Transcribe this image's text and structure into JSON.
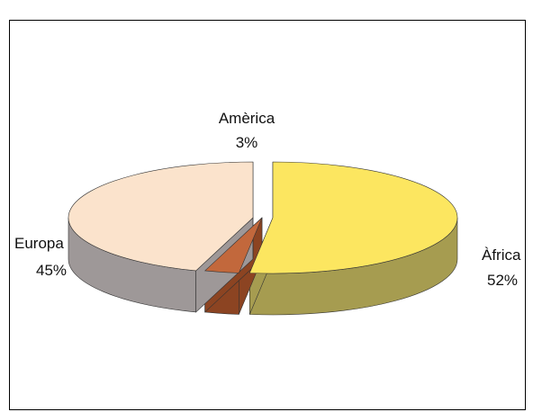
{
  "caption": "",
  "chart_data": {
    "type": "pie",
    "style": "3d-exploded",
    "title": "",
    "slices": [
      {
        "label": "Àfrica",
        "value_label": "52%",
        "value": 52,
        "top_color": "#fce660",
        "side_color": "#a69c50"
      },
      {
        "label": "Europa",
        "value_label": "45%",
        "value": 45,
        "top_color": "#fbe3cc",
        "side_color": "#9e9898"
      },
      {
        "label": "Amèrica",
        "value_label": "3%",
        "value": 3,
        "top_color": "#c2683c",
        "side_color": "#8c4422"
      }
    ],
    "legend": "none"
  }
}
